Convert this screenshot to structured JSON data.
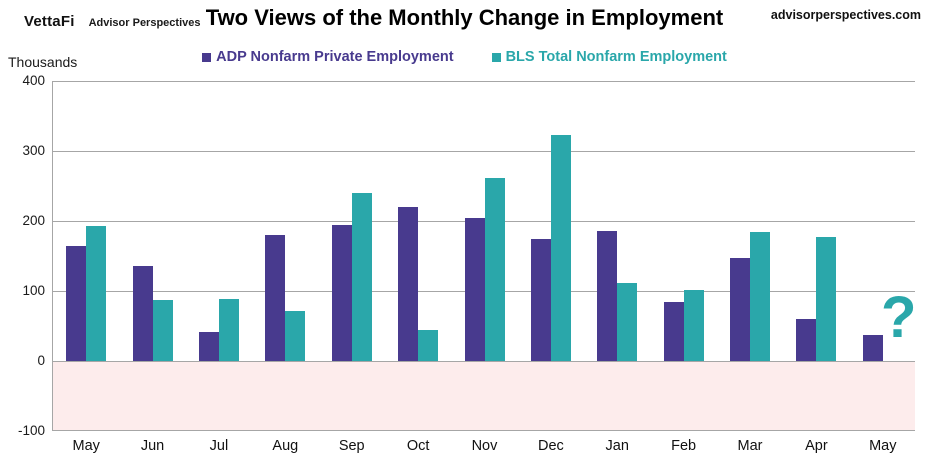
{
  "header": {
    "logo_primary": "VettaFi",
    "logo_secondary": "Advisor Perspectives",
    "title": "Two Views of the Monthly Change in Employment",
    "website": "advisorperspectives.com"
  },
  "y_axis_title": "Thousands",
  "missing_value_marker": "?",
  "legend": [
    {
      "label": "ADP Nonfarm Private Employment",
      "color": "#483a8e"
    },
    {
      "label": "BLS Total Nonfarm Employment",
      "color": "#2aa7aa"
    }
  ],
  "colors": {
    "adp_purple": "#483a8e",
    "bls_teal": "#2aa7aa",
    "gridline_gray": "#a6a6a6",
    "below_zero_pink": "#fdecec"
  },
  "chart_data": {
    "type": "bar",
    "title": "Two Views of the Monthly Change in Employment",
    "ylabel": "Thousands",
    "xlabel": "",
    "categories": [
      "May",
      "Jun",
      "Jul",
      "Aug",
      "Sep",
      "Oct",
      "Nov",
      "Dec",
      "Jan",
      "Feb",
      "Mar",
      "Apr",
      "May"
    ],
    "series": [
      {
        "name": "ADP Nonfarm Private Employment",
        "color": "#483a8e",
        "values": [
          164,
          136,
          42,
          180,
          195,
          220,
          204,
          175,
          186,
          84,
          147,
          60,
          37
        ]
      },
      {
        "name": "BLS Total Nonfarm Employment",
        "color": "#2aa7aa",
        "values": [
          193,
          87,
          88,
          71,
          240,
          44,
          261,
          323,
          111,
          102,
          185,
          177,
          null
        ]
      }
    ],
    "ylim": [
      -100,
      400
    ],
    "yticks": [
      400,
      300,
      200,
      100,
      0,
      -100
    ],
    "grid": true,
    "legend_position": "top",
    "below_zero_shaded": true,
    "annotation": {
      "text": "?",
      "color": "#2aa7aa",
      "attached_to": "last BLS value (missing)"
    }
  }
}
